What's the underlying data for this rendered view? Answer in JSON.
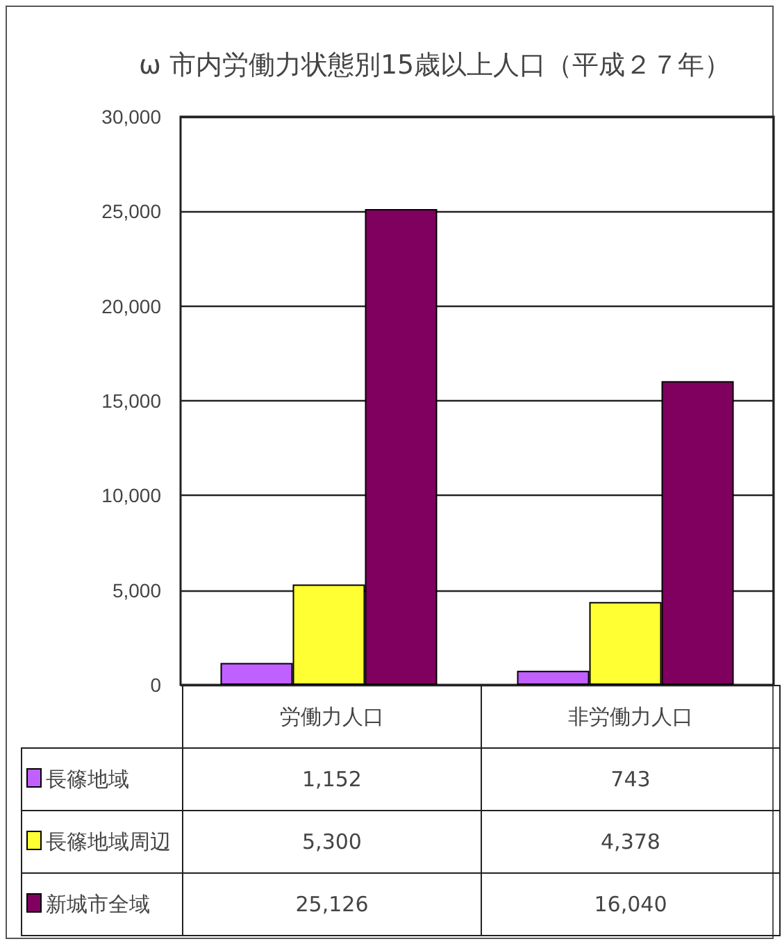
{
  "chart_data": {
    "type": "bar",
    "title": "ω 市内労働力状態別15歳以上人口（平成２７年）",
    "categories": [
      "労働力人口",
      "非労働力人口"
    ],
    "series": [
      {
        "name": "長篠地域",
        "color": "#c060ff",
        "values": [
          1152,
          743
        ],
        "value_labels": [
          "1,152",
          "743"
        ]
      },
      {
        "name": "長篠地域周辺",
        "color": "#ffff33",
        "values": [
          5300,
          4378
        ],
        "value_labels": [
          "5,300",
          "4,378"
        ]
      },
      {
        "name": "新城市全域",
        "color": "#800060",
        "values": [
          25126,
          16040
        ],
        "value_labels": [
          "25,126",
          "16,040"
        ]
      }
    ],
    "ylim": [
      0,
      30000
    ],
    "yticks": [
      0,
      {
        "value": 5000,
        "label": "5,000"
      },
      {
        "value": 10000,
        "label": "10,000"
      },
      {
        "value": 15000,
        "label": "15,000"
      },
      {
        "value": 20000,
        "label": "20,000"
      },
      {
        "value": 25000,
        "label": "25,000"
      },
      {
        "value": 30000,
        "label": "30,000"
      }
    ],
    "grid": "y",
    "legend": "bottom"
  }
}
